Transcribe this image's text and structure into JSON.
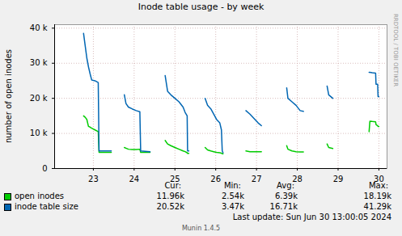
{
  "chart_data": {
    "type": "line",
    "title": "Inode table usage - by week",
    "y_label": "number of open inodes",
    "x": [
      22.76,
      22.8,
      22.84,
      22.88,
      22.92,
      22.96,
      23.04,
      23.12,
      23.14,
      23.44,
      23.6,
      23.76,
      23.8,
      23.86,
      23.95,
      24.05,
      24.14,
      24.16,
      24.39,
      24.6,
      24.76,
      24.82,
      24.9,
      25.0,
      25.1,
      25.2,
      25.25,
      25.3,
      25.31,
      25.34,
      25.6,
      25.74,
      25.8,
      25.88,
      25.95,
      26.02,
      26.1,
      26.14,
      26.16,
      26.18,
      26.6,
      26.74,
      26.84,
      26.96,
      27.04,
      27.12,
      27.6,
      27.74,
      27.77,
      27.87,
      27.97,
      28.07,
      28.15,
      28.6,
      28.73,
      28.77,
      28.87,
      29.6,
      29.76,
      29.78,
      29.84,
      29.92,
      29.93,
      29.97,
      29.98,
      30.0
    ],
    "series": [
      {
        "name": "open inodes",
        "color": "#00cc00",
        "values": [
          15000,
          14600,
          14000,
          12000,
          11800,
          11500,
          11000,
          10500,
          4600,
          4600,
          null,
          6000,
          5800,
          5500,
          5400,
          5400,
          5500,
          4600,
          4600,
          null,
          8000,
          7000,
          6500,
          6000,
          5500,
          5000,
          4800,
          4500,
          4300,
          4300,
          null,
          6000,
          5300,
          5000,
          4800,
          4600,
          4500,
          4400,
          4200,
          4200,
          null,
          5000,
          4800,
          4800,
          4800,
          4800,
          null,
          6500,
          5500,
          5000,
          4800,
          4700,
          4700,
          null,
          7000,
          6000,
          5700,
          null,
          10500,
          13500,
          13400,
          13300,
          12500,
          12200,
          12000,
          11960
        ],
        "stats": [
          "11.96k",
          "2.54k",
          "6.39k",
          "18.19k"
        ]
      },
      {
        "name": "inode table size",
        "color": "#0066b3",
        "values": [
          38500,
          35000,
          31500,
          29000,
          27000,
          25200,
          25000,
          24500,
          5000,
          5000,
          null,
          21000,
          18500,
          17500,
          17000,
          16500,
          16200,
          5000,
          4800,
          null,
          26500,
          22000,
          21000,
          20000,
          19000,
          17500,
          16000,
          15000,
          5000,
          5000,
          null,
          20000,
          18000,
          17000,
          15500,
          14000,
          13000,
          11000,
          5000,
          4500,
          null,
          16500,
          15500,
          14000,
          13000,
          12200,
          null,
          23000,
          20000,
          19000,
          18000,
          16500,
          16300,
          null,
          23500,
          21000,
          20000,
          null,
          27400,
          27400,
          27300,
          27200,
          24000,
          24000,
          20520,
          20520
        ],
        "stats": [
          "20.52k",
          "3.47k",
          "16.71k",
          "41.29k"
        ]
      }
    ],
    "stats_columns": [
      "Cur:",
      "Min:",
      "Avg:",
      "Max:"
    ],
    "xlim": [
      22.05,
      30.2
    ],
    "xticks": [
      23,
      24,
      25,
      26,
      27,
      28,
      29,
      30
    ],
    "ylim": [
      0,
      41000
    ],
    "yticks": [
      0,
      {
        "value": 10000,
        "label": "10 k"
      },
      {
        "value": 20000,
        "label": "20 k"
      },
      {
        "value": 30000,
        "label": "30 k"
      },
      {
        "value": 40000,
        "label": "40 k"
      }
    ],
    "grid": true,
    "annotations": {
      "last_update": "Last update:  Sun Jun 30 13:00:05 2024",
      "version": "Munin 1.4.5",
      "watermark": "RRDTOOL / TOBI OETIKER"
    }
  }
}
